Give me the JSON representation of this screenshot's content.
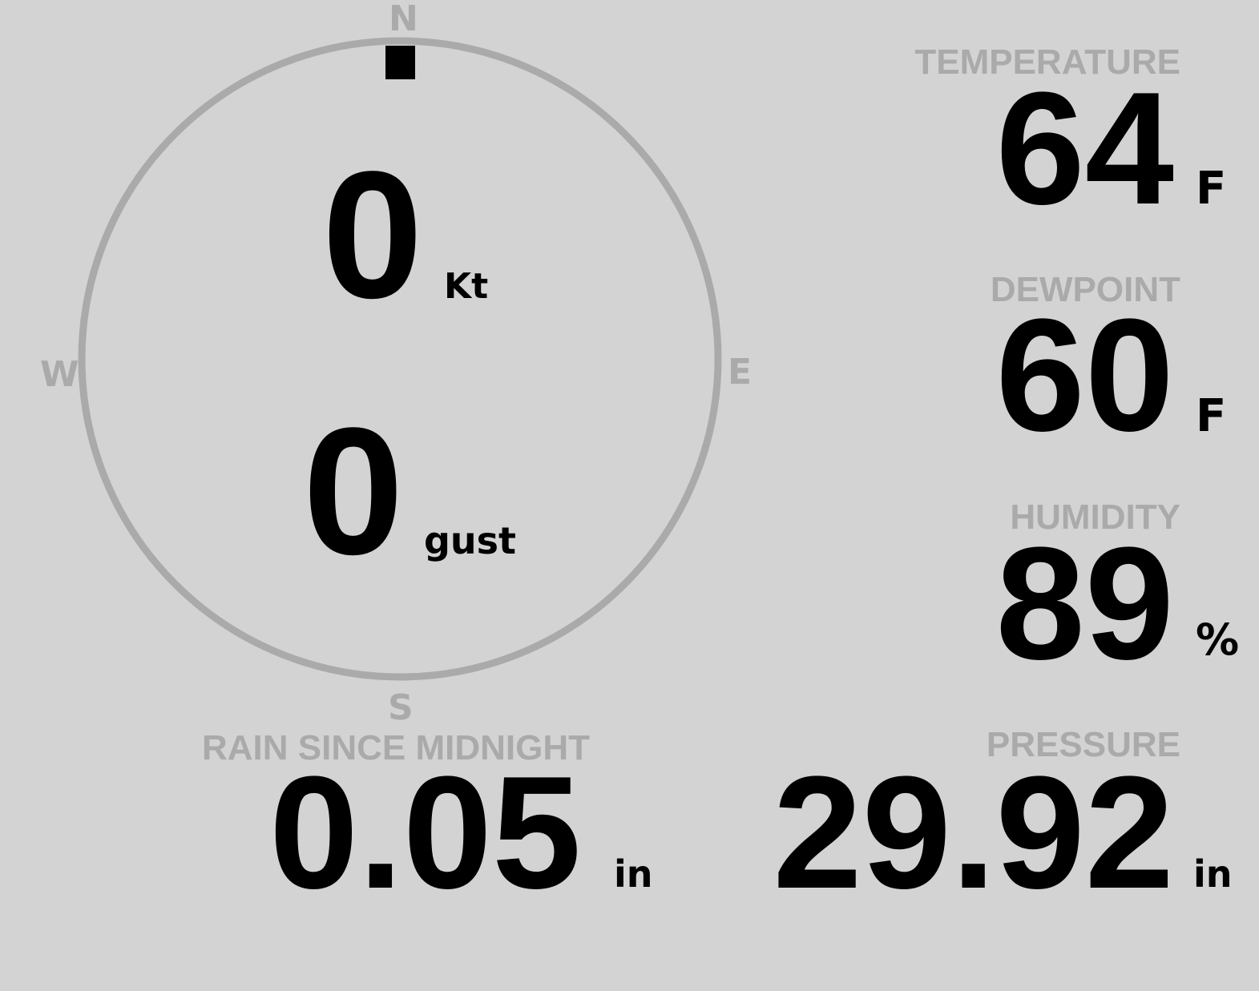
{
  "wind": {
    "speed": "0",
    "speed_unit": "Kt",
    "gust": "0",
    "gust_unit": "gust",
    "direction_deg": 0,
    "compass": {
      "n": "N",
      "e": "E",
      "s": "S",
      "w": "W"
    }
  },
  "temperature": {
    "label": "TEMPERATURE",
    "value": "64",
    "unit": "F"
  },
  "dewpoint": {
    "label": "DEWPOINT",
    "value": "60",
    "unit": "F"
  },
  "humidity": {
    "label": "HUMIDITY",
    "value": "89",
    "unit": "%"
  },
  "rain": {
    "label": "RAIN SINCE MIDNIGHT",
    "value": "0.05",
    "unit": "in"
  },
  "pressure": {
    "label": "PRESSURE",
    "value": "29.92",
    "unit": "in"
  },
  "colors": {
    "background": "#d3d3d3",
    "label": "#aaaaaa",
    "value": "#000000"
  }
}
